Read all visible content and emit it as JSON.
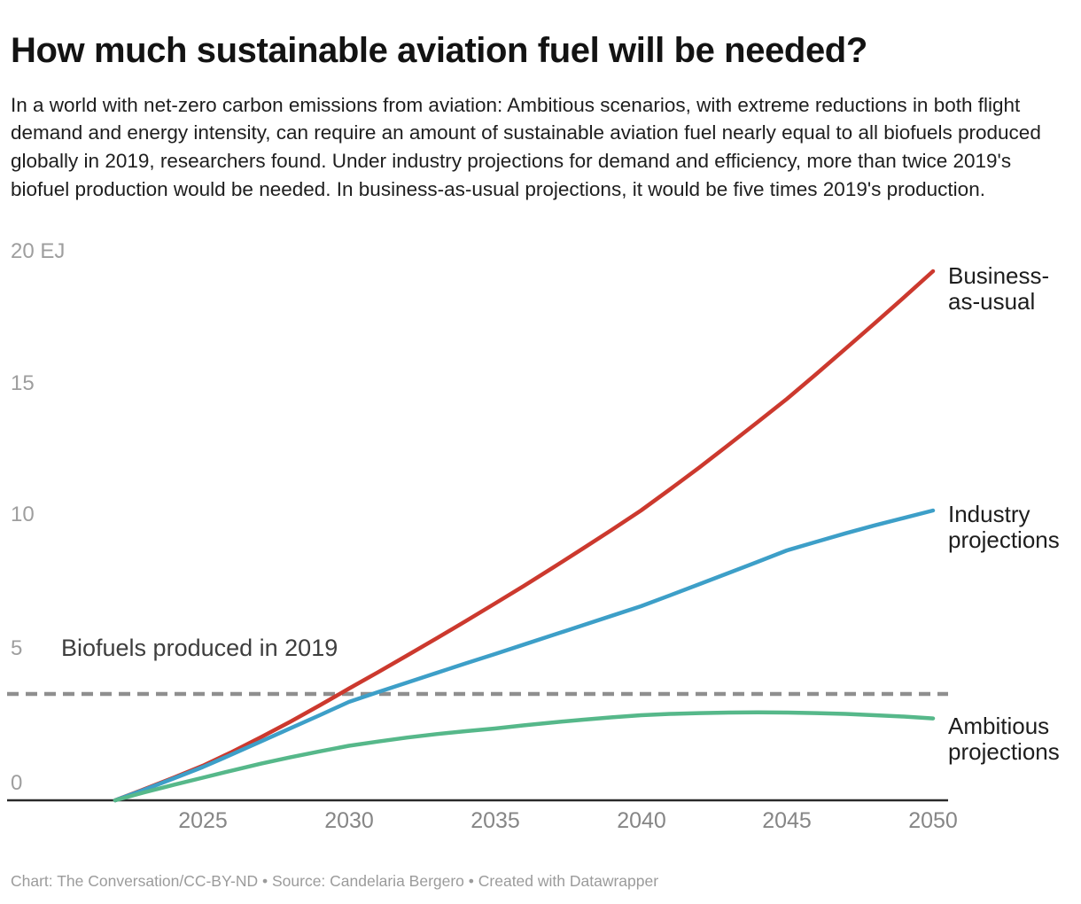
{
  "header": {
    "title": "How much sustainable aviation fuel will be needed?",
    "description": "In a world with net-zero carbon emissions from aviation: Ambitious scenarios, with extreme reductions in both flight demand and energy intensity, can require an amount of sustainable aviation fuel nearly equal to all biofuels produced globally in 2019, researchers found. Under industry projections for demand and efficiency, more than twice 2019's biofuel production would be needed. In business-as-usual projections, it would be five times 2019's production."
  },
  "chart_data": {
    "type": "line",
    "title": "How much sustainable aviation fuel will be needed?",
    "unit": "EJ",
    "xlim": [
      2022,
      2050
    ],
    "ylim": [
      0,
      20
    ],
    "grid": false,
    "legend_position": "right-of-line-ends",
    "years": [
      2022,
      2023,
      2024,
      2025,
      2026,
      2027,
      2028,
      2029,
      2030,
      2031,
      2032,
      2033,
      2034,
      2035,
      2036,
      2037,
      2038,
      2039,
      2040,
      2041,
      2042,
      2043,
      2044,
      2045,
      2046,
      2047,
      2048,
      2049,
      2050
    ],
    "series": [
      {
        "id": "business-as-usual",
        "name": "Business-as-usual",
        "label_lines": [
          "Business-",
          "as-usual"
        ],
        "color": "#cc392e",
        "values": [
          0,
          0.42,
          0.85,
          1.3,
          1.82,
          2.38,
          2.96,
          3.57,
          4.2,
          4.82,
          5.45,
          6.09,
          6.74,
          7.4,
          8.07,
          8.76,
          9.46,
          10.17,
          10.9,
          11.7,
          12.52,
          13.37,
          14.23,
          15.1,
          16.03,
          16.98,
          17.94,
          18.91,
          19.9
        ]
      },
      {
        "id": "industry-projections",
        "name": "Industry projections",
        "label_lines": [
          "Industry",
          "projections"
        ],
        "color": "#3d9fc8",
        "values": [
          0,
          0.4,
          0.82,
          1.25,
          1.73,
          2.22,
          2.71,
          3.2,
          3.7,
          4.07,
          4.43,
          4.79,
          5.15,
          5.5,
          5.86,
          6.22,
          6.58,
          6.94,
          7.3,
          7.71,
          8.13,
          8.55,
          8.97,
          9.4,
          9.72,
          10.04,
          10.34,
          10.62,
          10.9
        ]
      },
      {
        "id": "ambitious-projections",
        "name": "Ambitious projections",
        "label_lines": [
          "Ambitious",
          "projections"
        ],
        "color": "#56b88a",
        "values": [
          0,
          0.3,
          0.58,
          0.85,
          1.12,
          1.38,
          1.62,
          1.84,
          2.05,
          2.21,
          2.36,
          2.49,
          2.6,
          2.7,
          2.82,
          2.93,
          3.03,
          3.12,
          3.2,
          3.25,
          3.28,
          3.3,
          3.31,
          3.3,
          3.28,
          3.25,
          3.2,
          3.15,
          3.08
        ]
      }
    ],
    "annotation": {
      "label": "Biofuels produced in 2019",
      "value": 4
    },
    "y_ticks": [
      {
        "label": "20 EJ",
        "value": 20
      },
      {
        "label": "15",
        "value": 15
      },
      {
        "label": "10",
        "value": 10
      },
      {
        "label": "5",
        "value": 5
      },
      {
        "label": "0",
        "value": 0
      }
    ],
    "x_ticks": [
      {
        "label": "2025",
        "value": 2025
      },
      {
        "label": "2030",
        "value": 2030
      },
      {
        "label": "2035",
        "value": 2035
      },
      {
        "label": "2040",
        "value": 2040
      },
      {
        "label": "2045",
        "value": 2045
      },
      {
        "label": "2050",
        "value": 2050
      }
    ],
    "colors": {
      "dashed_reference": "#8f8f8f",
      "axis": "#2a2a2a"
    }
  },
  "footer": {
    "text": "Chart: The Conversation/CC-BY-ND • Source: Candelaria Bergero • Created with Datawrapper"
  }
}
